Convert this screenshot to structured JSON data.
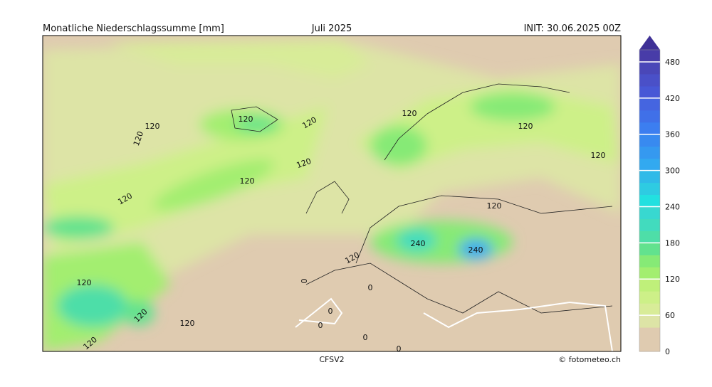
{
  "header": {
    "title": "Monatliche Niederschlagssumme [mm]",
    "period": "Juli 2025",
    "init": "INIT: 30.06.2025 00Z"
  },
  "footer": {
    "model": "CFSV2",
    "credit": "© fotometeo.ch"
  },
  "colorbar": {
    "range": [
      0,
      500
    ],
    "ticks": [
      0,
      60,
      120,
      180,
      240,
      300,
      360,
      420,
      480
    ],
    "colors": [
      "#dfcbb0",
      "#dfcbb0",
      "#dde4a6",
      "#d8ec98",
      "#cdf088",
      "#bff07a",
      "#a3ee70",
      "#86ea76",
      "#62e28e",
      "#4edea8",
      "#42dbbe",
      "#38d8d0",
      "#22e0e0",
      "#2ecbe2",
      "#30bae8",
      "#32a9f0",
      "#3599f0",
      "#388af0",
      "#3c7ef0",
      "#4070e8",
      "#4565e0",
      "#4858d6",
      "#4a50c8",
      "#4a47b8",
      "#483ca8"
    ],
    "extend_color": "#3f3196"
  },
  "map": {
    "contour_labels": [
      "120",
      "120",
      "120",
      "120",
      "120",
      "120",
      "120",
      "120",
      "120",
      "120",
      "120",
      "120",
      "120",
      "120",
      "120",
      "120",
      "240",
      "240",
      "0",
      "0",
      "0",
      "0",
      "0",
      "0"
    ]
  }
}
